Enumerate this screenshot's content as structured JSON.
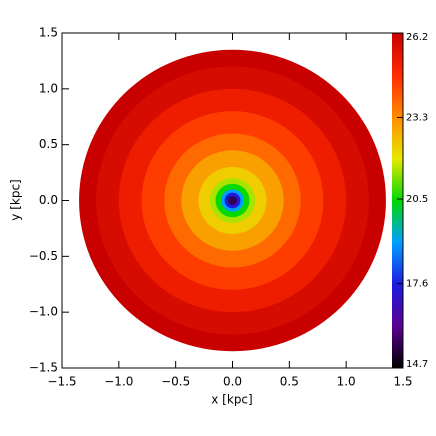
{
  "chart_data": {
    "type": "image",
    "x_label": "x [kpc]",
    "y_label": "y [kpc]",
    "xlim": [
      -1.5,
      1.5
    ],
    "ylim": [
      -1.5,
      1.5
    ],
    "xticks": [
      {
        "value": -1.5,
        "label": "−1.5"
      },
      {
        "value": -1.0,
        "label": "−1.0"
      },
      {
        "value": -0.5,
        "label": "−0.5"
      },
      {
        "value": 0,
        "label": "0.0"
      },
      0.5,
      {
        "value": 1.0,
        "label": "1.0"
      },
      1.5
    ],
    "yticks": [
      {
        "value": -1.5,
        "label": "−1.5"
      },
      {
        "value": -1.0,
        "label": "−1.0"
      },
      {
        "value": -0.5,
        "label": "−0.5"
      },
      {
        "value": 0,
        "label": "0.0"
      },
      0.5,
      {
        "value": 1.0,
        "label": "1.0"
      },
      1.5
    ],
    "clim": [
      14.7,
      26.2
    ],
    "cticks": [
      14.7,
      17.6,
      20.5,
      23.3,
      26.2
    ],
    "colormap": [
      "#000000",
      "#5a0090",
      "#1c1ce0",
      "#00a0ff",
      "#00d800",
      "#e8e800",
      "#ff8a00",
      "#ff2a00",
      "#c80000"
    ],
    "radial_profile": {
      "r": [
        1.35,
        1.2,
        1.0,
        0.8,
        0.6,
        0.45,
        0.3,
        0.2,
        0.15,
        0.1,
        0.07,
        0.04
      ],
      "values": [
        26.2,
        25.8,
        25.2,
        24.5,
        23.8,
        23.0,
        22.3,
        21.5,
        20.5,
        19.0,
        17.5,
        15.5
      ]
    }
  }
}
